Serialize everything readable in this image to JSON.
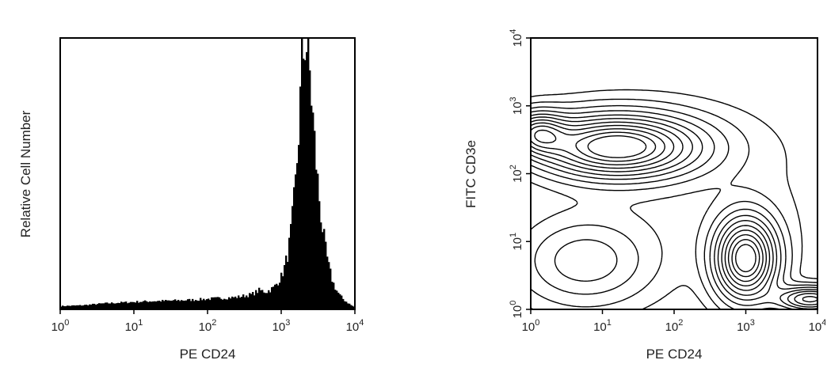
{
  "chart_data": [
    {
      "type": "area",
      "subtype": "histogram",
      "xlabel": "PE CD24",
      "ylabel": "Relative Cell Number",
      "xscale": "log",
      "xlim": [
        1,
        10000
      ],
      "xticks": [
        "10^0",
        "10^1",
        "10^2",
        "10^3",
        "10^4"
      ],
      "yticks": [],
      "fill_color": "#000000",
      "series": [
        {
          "log10_x": [
            0.0,
            0.3,
            0.6,
            0.9,
            1.2,
            1.5,
            1.8,
            2.1,
            2.4,
            2.6,
            2.7,
            2.8,
            2.9,
            3.0,
            3.05,
            3.1,
            3.15,
            3.2,
            3.25,
            3.28,
            3.32,
            3.36,
            3.4,
            3.45,
            3.5,
            3.55,
            3.6,
            3.65,
            3.7,
            3.75,
            3.8,
            3.85,
            3.9,
            3.95,
            4.0
          ],
          "values": [
            0.012,
            0.015,
            0.022,
            0.026,
            0.03,
            0.032,
            0.035,
            0.04,
            0.045,
            0.055,
            0.07,
            0.065,
            0.08,
            0.12,
            0.16,
            0.22,
            0.33,
            0.48,
            0.72,
            0.9,
            1.0,
            0.96,
            0.82,
            0.62,
            0.45,
            0.32,
            0.22,
            0.15,
            0.1,
            0.07,
            0.05,
            0.035,
            0.025,
            0.015,
            0.008
          ]
        }
      ]
    },
    {
      "type": "contour",
      "xlabel": "PE CD24",
      "ylabel": "FITC CD3e",
      "xscale": "log",
      "yscale": "log",
      "xlim": [
        1,
        10000
      ],
      "ylim": [
        1,
        10000
      ],
      "xticks": [
        "10^0",
        "10^1",
        "10^2",
        "10^3",
        "10^4"
      ],
      "yticks": [
        "10^0",
        "10^1",
        "10^2",
        "10^3",
        "10^4"
      ],
      "populations": [
        {
          "log10_center": [
            1.2,
            2.4
          ],
          "log10_spread": [
            0.75,
            0.3
          ],
          "weight": 1.0
        },
        {
          "log10_center": [
            3.0,
            0.75
          ],
          "log10_spread": [
            0.28,
            0.4
          ],
          "weight": 1.0
        },
        {
          "log10_center": [
            0.75,
            0.7
          ],
          "log10_spread": [
            0.6,
            0.42
          ],
          "weight": 0.28
        },
        {
          "log10_center": [
            0.1,
            2.6
          ],
          "log10_spread": [
            0.25,
            0.2
          ],
          "weight": 0.55
        },
        {
          "log10_center": [
            3.9,
            0.15
          ],
          "log10_spread": [
            0.3,
            0.12
          ],
          "weight": 0.65
        },
        {
          "log10_center": [
            2.0,
            1.8
          ],
          "log10_spread": [
            1.6,
            1.0
          ],
          "weight": 0.06
        }
      ],
      "levels": [
        0.04,
        0.09,
        0.16,
        0.24,
        0.33,
        0.42,
        0.52,
        0.62,
        0.72,
        0.82,
        0.91
      ]
    }
  ]
}
